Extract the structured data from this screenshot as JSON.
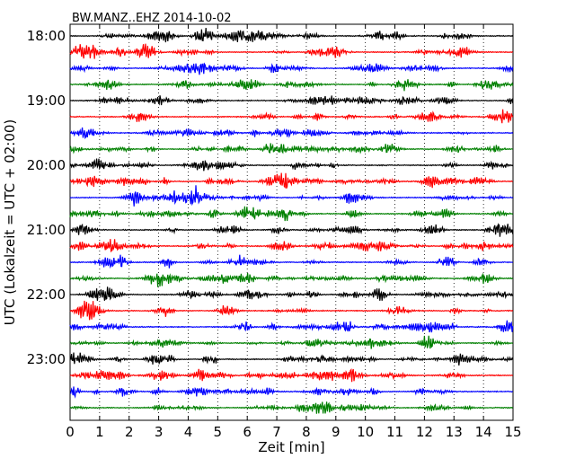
{
  "chart_data": {
    "type": "line",
    "title": "BW.MANZ..EHZ 2014-10-02",
    "xlabel": "Zeit  [min]",
    "ylabel": "UTC (Lokalzeit = UTC + 02:00)",
    "xlim": [
      0,
      15
    ],
    "x_ticks": [
      "0",
      "1",
      "2",
      "3",
      "4",
      "5",
      "6",
      "7",
      "8",
      "9",
      "10",
      "11",
      "12",
      "13",
      "14",
      "15"
    ],
    "y_ticks": [
      "18:00",
      "19:00",
      "20:00",
      "21:00",
      "22:00",
      "23:00"
    ],
    "grid": "vertical dotted",
    "trace_start_time": "18:00",
    "trace_interval_min": 15,
    "trace_count": 24,
    "trace_colors": [
      "#000000",
      "#ff0000",
      "#0000ff",
      "#008000"
    ]
  }
}
